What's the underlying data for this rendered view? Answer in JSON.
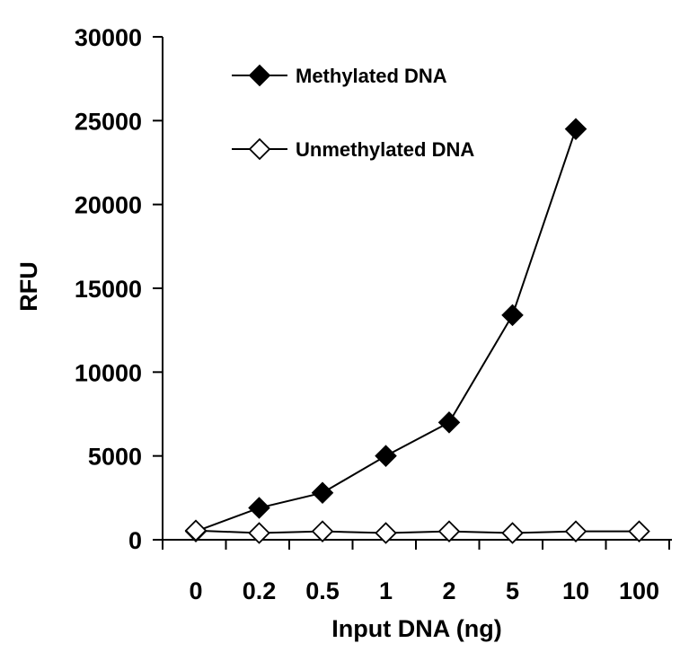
{
  "chart_data": {
    "type": "line",
    "xlabel": "Input DNA (ng)",
    "ylabel": "RFU",
    "categories": [
      "0",
      "0.2",
      "0.5",
      "1",
      "2",
      "5",
      "10",
      "100"
    ],
    "ylim": [
      0,
      30000
    ],
    "yticks": [
      0,
      5000,
      10000,
      15000,
      20000,
      25000,
      30000
    ],
    "grid": false,
    "legend_position": "top-left",
    "series": [
      {
        "name": "Methylated DNA",
        "marker": "filled-diamond",
        "color": "#000000",
        "values": [
          500,
          1900,
          2800,
          5000,
          7000,
          13400,
          24500,
          null
        ]
      },
      {
        "name": "Unmethylated DNA",
        "marker": "open-diamond",
        "color": "#000000",
        "values": [
          550,
          400,
          500,
          400,
          500,
          400,
          500,
          500
        ]
      }
    ]
  }
}
